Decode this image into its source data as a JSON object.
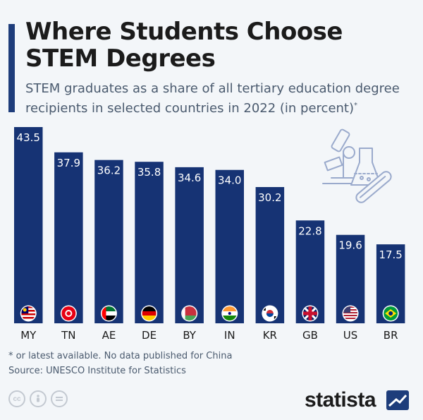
{
  "title": "Where Students Choose STEM Degrees",
  "subtitle": "STEM graduates as a share of all tertiary education degree recipients in selected countries in 2022 (in percent)",
  "subtitle_marker": "*",
  "footnote": "* or latest available. No data published for China",
  "source": "Source: UNESCO Institute for Statistics",
  "brand": "statista",
  "colors": {
    "bar": "#163374",
    "accent": "#1e3d7b",
    "background": "#f3f6f9"
  },
  "icons": [
    "cc-icon",
    "person-icon",
    "equals-icon",
    "lab-illustration-icon",
    "statista-logo-icon"
  ],
  "chart_data": {
    "type": "bar",
    "categories": [
      "MY",
      "TN",
      "AE",
      "DE",
      "BY",
      "IN",
      "KR",
      "GB",
      "US",
      "BR"
    ],
    "values": [
      43.5,
      37.9,
      36.2,
      35.8,
      34.6,
      34.0,
      30.2,
      22.8,
      19.6,
      17.5
    ],
    "labels": [
      "43.5",
      "37.9",
      "36.2",
      "35.8",
      "34.6",
      "34.0",
      "30.2",
      "22.8",
      "19.6",
      "17.5"
    ],
    "flags": [
      "malaysia-flag-icon",
      "tunisia-flag-icon",
      "uae-flag-icon",
      "germany-flag-icon",
      "belarus-flag-icon",
      "india-flag-icon",
      "south-korea-flag-icon",
      "uk-flag-icon",
      "usa-flag-icon",
      "brazil-flag-icon"
    ],
    "ylim": [
      0,
      43.5
    ],
    "grid": false,
    "xlabel": "",
    "ylabel": ""
  }
}
